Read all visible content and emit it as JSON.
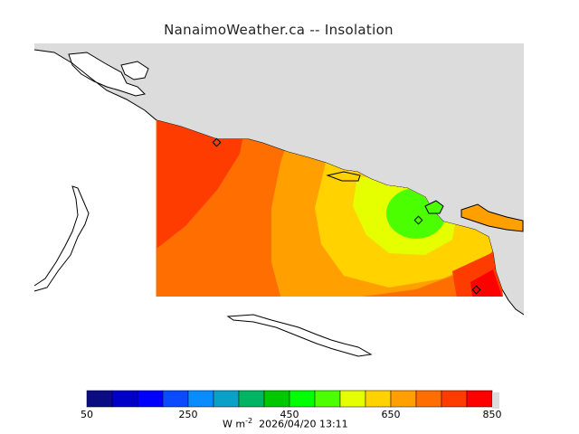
{
  "header": {
    "title": "NanaimoWeather.ca  --  Insolation"
  },
  "colorbar": {
    "colors": [
      "#0c0c82",
      "#0000c8",
      "#0000ff",
      "#0a4bff",
      "#0a8cff",
      "#0aa0c8",
      "#00b464",
      "#00c800",
      "#00ff00",
      "#4bff00",
      "#e6ff00",
      "#ffd200",
      "#ffa000",
      "#ff6e00",
      "#ff3c00",
      "#ff0000"
    ],
    "tick_labels": [
      "50",
      "250",
      "450",
      "650",
      "850"
    ],
    "units_base": "W m",
    "units_exp": "-2",
    "timestamp": "2026/04/20 13:11"
  },
  "map": {
    "land_color": "#dcdcdc",
    "water_color": "#ffffff",
    "station_markers": 3
  }
}
